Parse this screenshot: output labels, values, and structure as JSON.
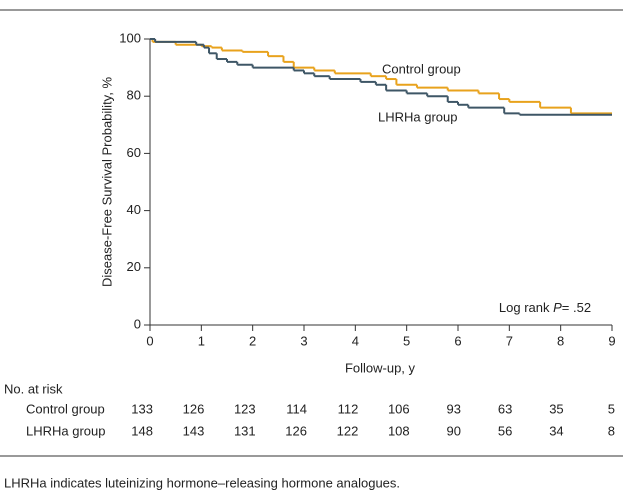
{
  "chart_data": {
    "type": "km-step",
    "y_label": "Disease-Free Survival Probability, %",
    "x_label": "Follow-up, y",
    "xlim": [
      0,
      9
    ],
    "xticks": [
      0,
      1,
      2,
      3,
      4,
      5,
      6,
      7,
      8,
      9
    ],
    "ylim": [
      0,
      100
    ],
    "yticks": [
      0,
      20,
      40,
      60,
      80,
      100
    ],
    "series": [
      {
        "name": "Control group",
        "color": "#e8a21c",
        "x": [
          0,
          0.05,
          0.5,
          1.0,
          1.2,
          1.4,
          1.8,
          2.3,
          2.6,
          2.8,
          3.2,
          3.6,
          4.3,
          4.6,
          4.8,
          5.2,
          5.8,
          6.4,
          6.8,
          7.0,
          7.6,
          8.2,
          9.0
        ],
        "values": [
          100,
          99,
          98,
          97.5,
          97,
          96,
          95.5,
          94,
          92,
          90,
          89,
          88,
          87,
          86,
          84,
          83,
          82,
          81,
          79,
          78,
          76,
          74,
          74
        ]
      },
      {
        "name": "LHRHa group",
        "color": "#3e5666",
        "x": [
          0,
          0.1,
          0.9,
          1.05,
          1.15,
          1.3,
          1.5,
          1.7,
          2.0,
          2.8,
          3.0,
          3.2,
          3.5,
          4.1,
          4.4,
          4.6,
          5.0,
          5.4,
          5.8,
          6.0,
          6.2,
          6.9,
          7.2,
          9.0
        ],
        "values": [
          100,
          99,
          98,
          97,
          95,
          93,
          92,
          91,
          90,
          89,
          88,
          87,
          86,
          85,
          84,
          82,
          81,
          80,
          78,
          77,
          76,
          74,
          73.5,
          73.5
        ]
      }
    ],
    "annotation": {
      "prefix": "Log rank",
      "italic": "P",
      "suffix": "= .52"
    },
    "risk_table": {
      "title": "No. at risk",
      "rows": [
        {
          "label": "Control group",
          "values": [
            133,
            126,
            123,
            114,
            112,
            106,
            93,
            63,
            35,
            5
          ]
        },
        {
          "label": "LHRHa group",
          "values": [
            148,
            143,
            131,
            126,
            122,
            108,
            90,
            56,
            34,
            8
          ]
        }
      ]
    },
    "footnote": "LHRHa indicates luteinizing hormone–releasing hormone analogues."
  }
}
